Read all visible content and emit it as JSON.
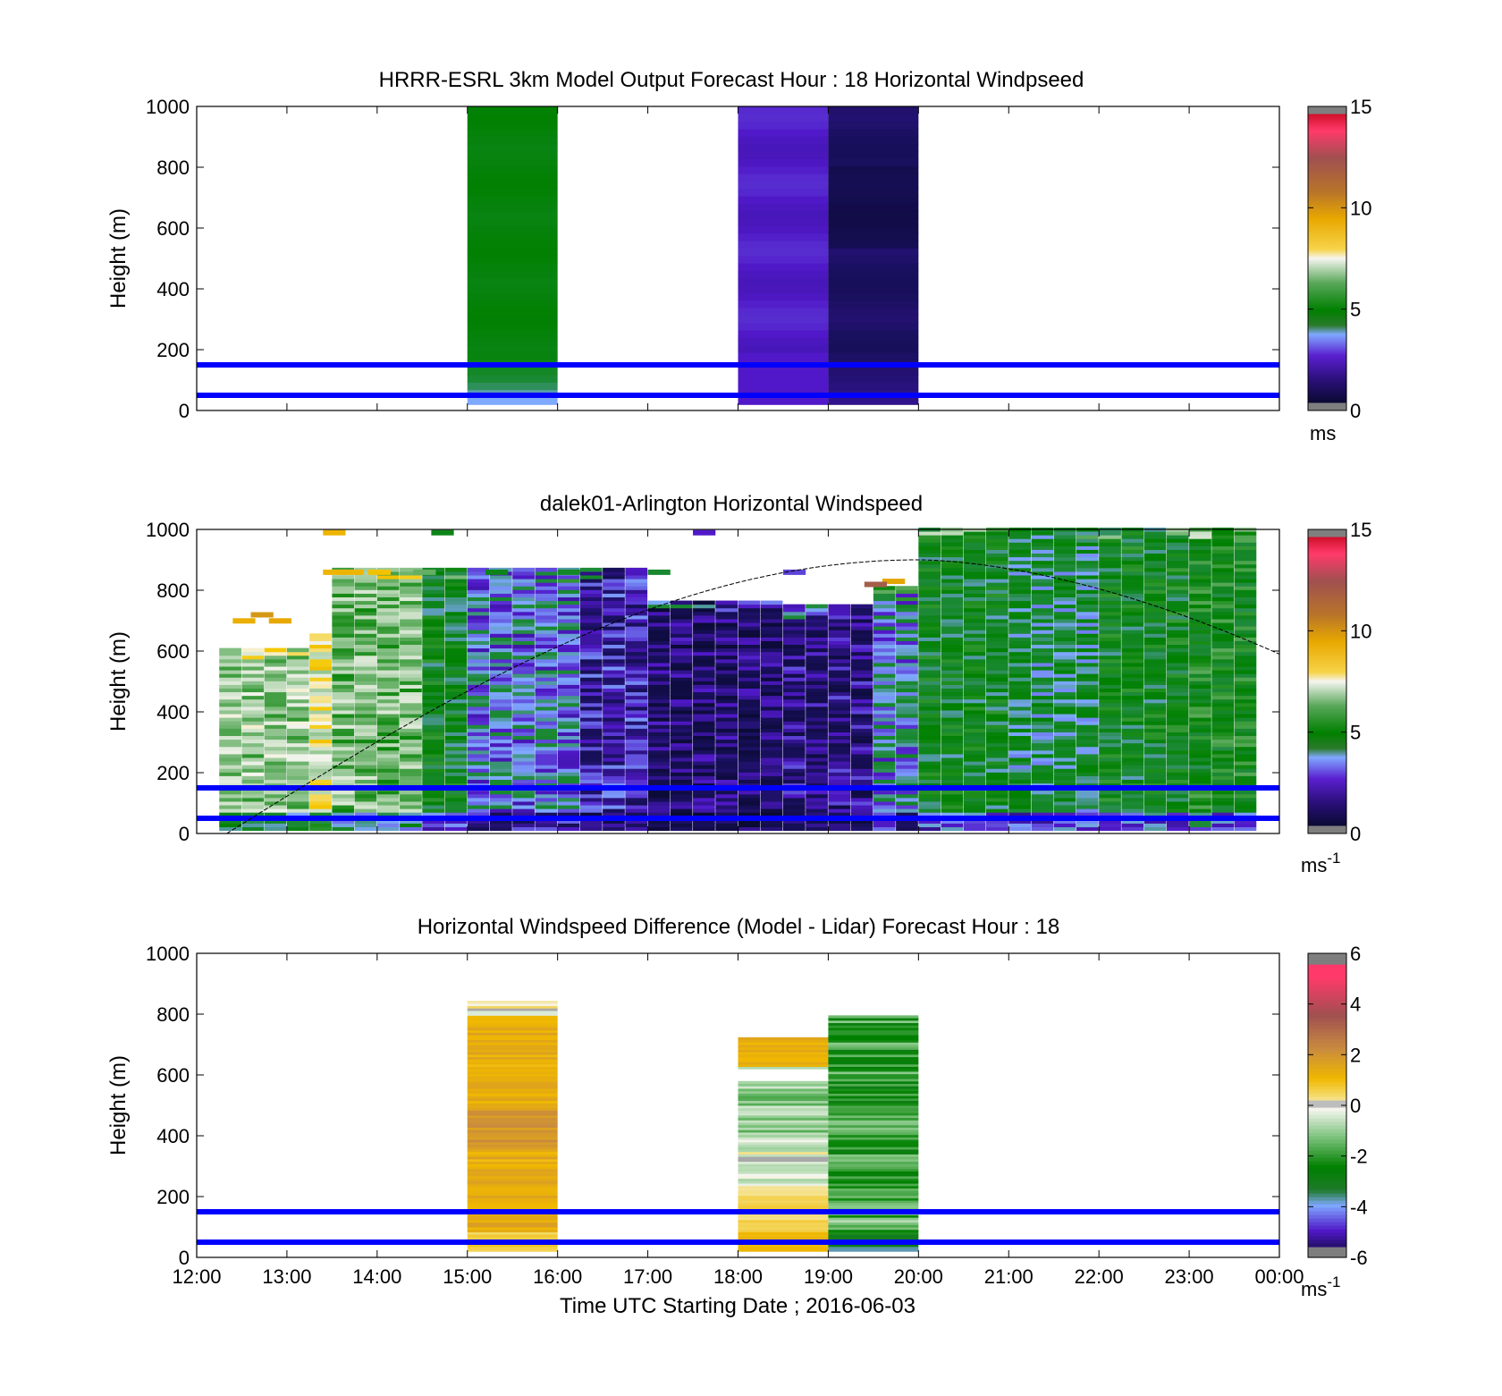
{
  "figure": {
    "xlabel": "Time UTC  Starting Date ; 2016-06-03",
    "x_ticks": [
      "12:00",
      "13:00",
      "14:00",
      "15:00",
      "16:00",
      "17:00",
      "18:00",
      "19:00",
      "20:00",
      "21:00",
      "22:00",
      "23:00",
      "00:00"
    ],
    "colors": {
      "reference_lines": "#0000ff",
      "axes": "#000000",
      "terrain_curve": "#000000"
    }
  },
  "chart_data": [
    {
      "type": "heatmap",
      "title": "HRRR-ESRL 3km Model Output   Forecast Hour : 18 Horizontal Windpseed",
      "ylabel": "Height (m)",
      "xlim": [
        "12:00",
        "00:00"
      ],
      "ylim": [
        0,
        1000
      ],
      "y_ticks": [
        0,
        200,
        400,
        600,
        800,
        1000
      ],
      "reference_lines_m": [
        50,
        150
      ],
      "colorbar": {
        "ticks": [
          0,
          5,
          10,
          15
        ],
        "range": [
          0,
          15
        ],
        "unit": "ms"
      },
      "blocks": [
        {
          "start": "15:00",
          "end": "16:00",
          "bottom_m": 20,
          "top_m": 1000,
          "mean_speed": 4.8,
          "low_level_speed": 3.2
        },
        {
          "start": "18:00",
          "end": "19:00",
          "bottom_m": 20,
          "top_m": 1000,
          "mean_speed": 2.2,
          "low_level_speed": 2.2
        },
        {
          "start": "19:00",
          "end": "20:00",
          "bottom_m": 20,
          "top_m": 1000,
          "mean_speed": 1.2,
          "low_level_speed": 1.6
        }
      ]
    },
    {
      "type": "heatmap",
      "title": "dalek01-Arlington  Horizontal Windspeed",
      "ylabel": "Height (m)",
      "xlim": [
        "12:00",
        "00:00"
      ],
      "ylim": [
        0,
        1000
      ],
      "y_ticks": [
        0,
        200,
        400,
        600,
        800,
        1000
      ],
      "reference_lines_m": [
        50,
        150
      ],
      "colorbar": {
        "ticks": [
          0,
          5,
          10,
          15
        ],
        "range": [
          0,
          15
        ],
        "unit": "ms",
        "unit_exp": "-1"
      },
      "profile_interval_min": 15,
      "speeds_by_period": [
        {
          "start": "12:15",
          "end": "13:15",
          "top_m": 600,
          "speed": 6.5
        },
        {
          "start": "13:15",
          "end": "13:30",
          "top_m": 650,
          "speed": 7.5
        },
        {
          "start": "13:30",
          "end": "14:30",
          "top_m": 860,
          "speed": 6.2
        },
        {
          "start": "14:30",
          "end": "15:00",
          "top_m": 860,
          "speed": 4.5
        },
        {
          "start": "15:00",
          "end": "16:15",
          "top_m": 860,
          "speed": 3.0
        },
        {
          "start": "16:15",
          "end": "17:00",
          "top_m": 860,
          "speed": 2.0
        },
        {
          "start": "17:00",
          "end": "18:30",
          "top_m": 760,
          "speed": 1.2
        },
        {
          "start": "18:30",
          "end": "19:30",
          "top_m": 740,
          "speed": 1.5
        },
        {
          "start": "19:30",
          "end": "20:00",
          "top_m": 800,
          "speed": 3.2
        },
        {
          "start": "20:00",
          "end": "21:00",
          "top_m": 1000,
          "speed": 4.4
        },
        {
          "start": "21:00",
          "end": "22:00",
          "top_m": 1000,
          "speed": 4.0
        },
        {
          "start": "22:00",
          "end": "23:00",
          "top_m": 1000,
          "speed": 4.5
        },
        {
          "start": "23:00",
          "end": "23:45",
          "top_m": 1000,
          "speed": 4.8
        }
      ],
      "terrain_curve": {
        "peak_time": "20:00",
        "peak_height_m": 900,
        "start": "12:20",
        "start_height_m": 0,
        "end": "00:00",
        "end_height_m": 590
      }
    },
    {
      "type": "heatmap",
      "title": "Horizontal Windspeed Difference (Model - Lidar) Forecast Hour : 18",
      "ylabel": "Height (m)",
      "xlim": [
        "12:00",
        "00:00"
      ],
      "ylim": [
        0,
        1000
      ],
      "y_ticks": [
        0,
        200,
        400,
        600,
        800,
        1000
      ],
      "reference_lines_m": [
        50,
        150
      ],
      "colorbar": {
        "ticks": [
          -6,
          -4,
          -2,
          0,
          2,
          4,
          6
        ],
        "range": [
          -6,
          6
        ],
        "unit": "ms",
        "unit_exp": "-1"
      },
      "blocks": [
        {
          "start": "15:00",
          "end": "16:00",
          "bottom_m": 20,
          "top_m": 840,
          "mean_diff": 1.3
        },
        {
          "start": "18:00",
          "end": "19:00",
          "bottom_m": 20,
          "top_m": 720,
          "mean_diff": 0.6,
          "gap_m": [
            580,
            620
          ]
        },
        {
          "start": "19:00",
          "end": "20:00",
          "bottom_m": 20,
          "top_m": 795,
          "mean_diff": -2.0
        }
      ]
    }
  ]
}
